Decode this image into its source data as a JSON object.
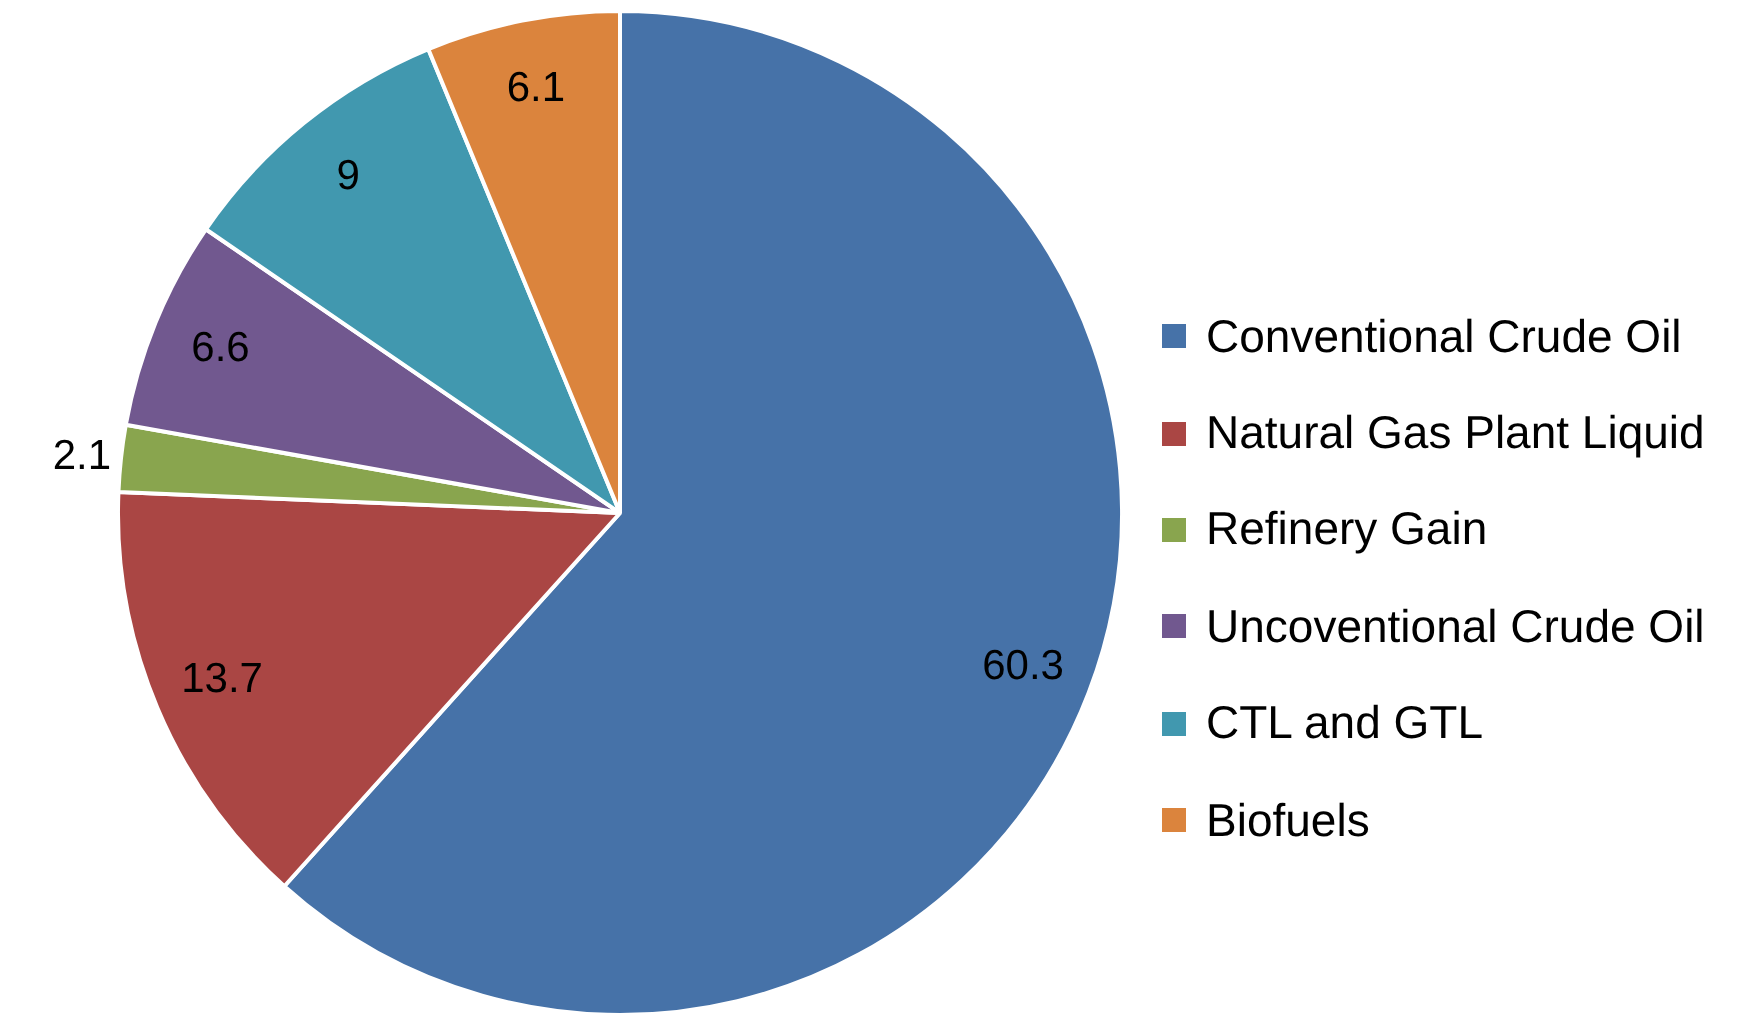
{
  "chart_data": {
    "type": "pie",
    "categories": [
      "Conventional Crude Oil",
      "Natural Gas Plant Liquid",
      "Refinery Gain",
      "Uncoventional Crude Oil",
      "CTL and GTL",
      "Biofuels"
    ],
    "values": [
      60.3,
      13.7,
      2.1,
      6.6,
      9,
      6.1
    ],
    "colors": [
      "#4672a8",
      "#aa4644",
      "#89a54e",
      "#71588f",
      "#4198af",
      "#db843d"
    ],
    "data_labels": true,
    "legend": "right"
  }
}
